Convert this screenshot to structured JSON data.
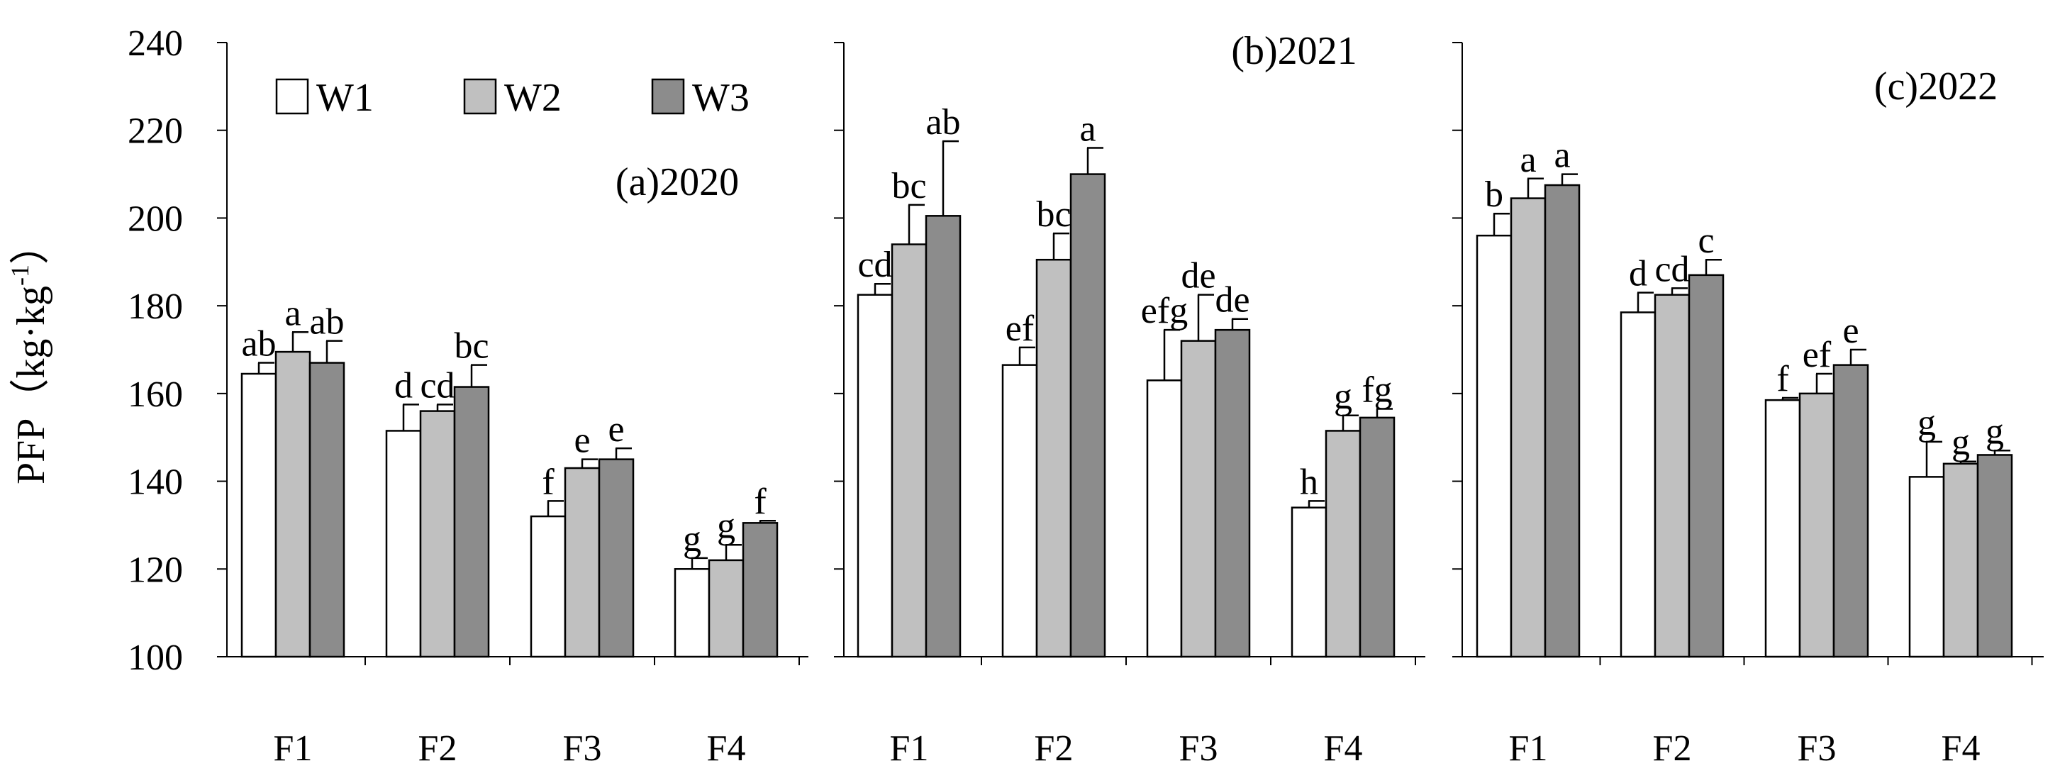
{
  "chart_data": {
    "type": "bar",
    "ylabel": "PFP（kg·kg",
    "ylabel_sup": "-1",
    "ylabel_close": "）",
    "ylim": [
      100,
      240
    ],
    "yticks": [
      "100",
      "120",
      "140",
      "160",
      "180",
      "200",
      "220",
      "240"
    ],
    "categories": [
      "F1",
      "F2",
      "F3",
      "F4"
    ],
    "legend": {
      "position": "top-left",
      "entries": [
        {
          "name": "W1",
          "color": "#ffffff"
        },
        {
          "name": "W2",
          "color": "#c0c0c0"
        },
        {
          "name": "W3",
          "color": "#8c8c8c"
        }
      ]
    },
    "panels": [
      {
        "title": "(a)2020",
        "series": [
          {
            "name": "W1",
            "values": [
              164.5,
              151.5,
              132,
              120
            ],
            "errors": [
              2.5,
              6,
              3.5,
              2.5
            ],
            "labels": [
              "ab",
              "d",
              "f",
              "g"
            ]
          },
          {
            "name": "W2",
            "values": [
              169.5,
              156,
              143,
              122
            ],
            "errors": [
              4.5,
              1.5,
              2,
              3.5
            ],
            "labels": [
              "a",
              "cd",
              "e",
              "g"
            ]
          },
          {
            "name": "W3",
            "values": [
              167,
              161.5,
              145,
              130.5
            ],
            "errors": [
              5,
              5,
              2.5,
              0.5
            ],
            "labels": [
              "ab",
              "bc",
              "e",
              "f"
            ]
          }
        ]
      },
      {
        "title": "(b)2021",
        "series": [
          {
            "name": "W1",
            "values": [
              182.5,
              166.5,
              163,
              134
            ],
            "errors": [
              2.5,
              4,
              11.5,
              1.5
            ],
            "labels": [
              "cd",
              "ef",
              "efg",
              "h"
            ]
          },
          {
            "name": "W2",
            "values": [
              194,
              190.5,
              172,
              151.5
            ],
            "errors": [
              9,
              6,
              10.5,
              3.5
            ],
            "labels": [
              "bc",
              "bc",
              "de",
              "g"
            ]
          },
          {
            "name": "W3",
            "values": [
              200.5,
              210,
              174.5,
              154.5
            ],
            "errors": [
              17,
              6,
              2.5,
              2
            ],
            "labels": [
              "ab",
              "a",
              "de",
              "fg"
            ]
          }
        ]
      },
      {
        "title": "(c)2022",
        "series": [
          {
            "name": "W1",
            "values": [
              196,
              178.5,
              158.5,
              141
            ],
            "errors": [
              5,
              4.5,
              0.5,
              8
            ],
            "labels": [
              "b",
              "d",
              "f",
              "g"
            ]
          },
          {
            "name": "W2",
            "values": [
              204.5,
              182.5,
              160,
              144
            ],
            "errors": [
              4.5,
              1.5,
              4.5,
              0.5
            ],
            "labels": [
              "a",
              "cd",
              "ef",
              "g"
            ]
          },
          {
            "name": "W3",
            "values": [
              207.5,
              187,
              166.5,
              146
            ],
            "errors": [
              2.5,
              3.5,
              3.5,
              1
            ],
            "labels": [
              "a",
              "c",
              "e",
              "g"
            ]
          }
        ]
      }
    ]
  }
}
